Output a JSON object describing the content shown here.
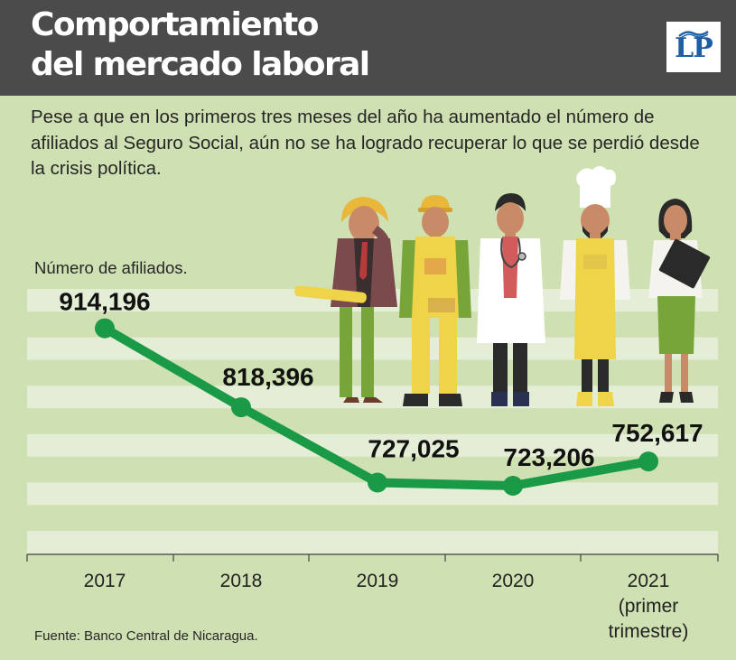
{
  "header": {
    "title_line1": "Comportamiento",
    "title_line2": "del mercado laboral",
    "logo_text": "LP"
  },
  "subtitle": "Pese a que en los primeros tres meses del año ha aumentado el número de afiliados al Seguro Social, aún no se ha logrado recuperar lo que se perdió desde la crisis política.",
  "source": "Fuente: Banco Central de Nicaragua.",
  "colors": {
    "header_bg": "#4b4b4b",
    "background": "#cfe0b2",
    "band": "#e4edd5",
    "line": "#1a9a47",
    "logo_blue": "#1c5fa6"
  },
  "chart_data": {
    "type": "line",
    "ylabel": "Número de afiliados.",
    "categories": [
      "2017",
      "2018",
      "2019",
      "2020",
      "2021 (primer trimestre)"
    ],
    "category_label_lines": [
      [
        "2017"
      ],
      [
        "2018"
      ],
      [
        "2019"
      ],
      [
        "2020"
      ],
      [
        "2021",
        "(primer",
        "trimestre)"
      ]
    ],
    "values": [
      914196,
      818396,
      727025,
      723206,
      752617
    ],
    "data_labels": [
      "914,196",
      "818,396",
      "727,025",
      "723,206",
      "752,617"
    ],
    "ylim": [
      640000,
      1000000
    ],
    "grid": "horizontal bands",
    "legend": "none"
  },
  "illustration": {
    "icons": [
      "worker-with-phone-icon",
      "construction-worker-icon",
      "doctor-icon",
      "chef-icon",
      "office-worker-icon"
    ]
  }
}
